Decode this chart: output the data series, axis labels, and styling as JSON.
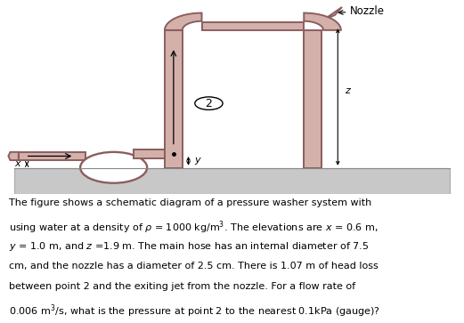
{
  "bg_color": "#ffffff",
  "pipe_fill": "#d4b0aa",
  "pipe_edge": "#8B5E5E",
  "ground_fill": "#c8c8c8",
  "ground_edge": "#aaaaaa",
  "fig_width": 5.21,
  "fig_height": 3.63,
  "dpi": 100,
  "caption_lines": [
    "The figure shows a schematic diagram of a pressure washer system with",
    "using water at a density of $\\rho$ = 1000 kg/m$^3$. The elevations are $x$ = 0.6 m,",
    "$y$ = 1.0 m, and $z$ =1.9 m. The main hose has an internal diameter of 7.5",
    "cm, and the nozzle has a diameter of 2.5 cm. There is 1.07 m of head loss",
    "between point 2 and the exiting jet from the nozzle. For a flow rate of",
    "0.006 m$^3$/s, what is the pressure at point 2 to the nearest 0.1kPa (gauge)?"
  ],
  "nozzle_label": "Nozzle",
  "point2_label": "2",
  "label_x": "$x$",
  "label_y": "$y$",
  "label_z": "$z$"
}
